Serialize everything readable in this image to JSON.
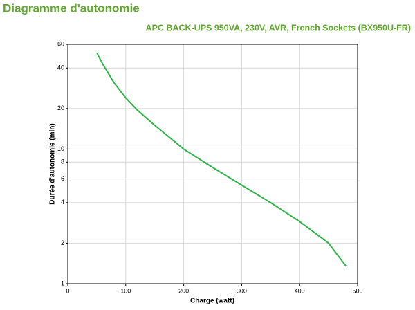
{
  "chart_data": {
    "type": "line",
    "title": "Diagramme d'autonomie",
    "subtitle": "APC BACK-UPS 950VA, 230V, AVR, French Sockets (BX950U-FR)",
    "x_label": "Charge (watt)",
    "y_label": "Durée d'autonomie (min)",
    "x": [
      50,
      60,
      80,
      100,
      120,
      150,
      200,
      250,
      300,
      350,
      400,
      450,
      480
    ],
    "values": [
      52,
      43,
      31,
      24,
      19.5,
      15,
      10,
      7.3,
      5.4,
      4,
      2.9,
      2,
      1.35
    ],
    "color": "#2db34a",
    "title_color": "#5fa82b",
    "xlim": [
      0,
      500
    ],
    "xticks": [
      0,
      100,
      200,
      300,
      400,
      500
    ],
    "ylim": [
      1,
      60
    ],
    "yticks": [
      1,
      2,
      4,
      6,
      8,
      10,
      20,
      40,
      60
    ],
    "yscale": "log",
    "grid": true
  }
}
